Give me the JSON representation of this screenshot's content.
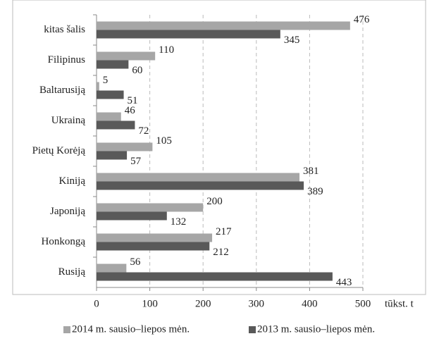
{
  "chart_data": {
    "type": "bar",
    "orientation": "horizontal",
    "categories": [
      "kitas šalis",
      "Filipinus",
      "Baltarusiją",
      "Ukrainą",
      "Pietų Korėją",
      "Kiniją",
      "Japoniją",
      "Honkongą",
      "Rusiją"
    ],
    "series": [
      {
        "name": "2014 m. sausio–liepos mėn.",
        "color": "#a6a6a6",
        "values": [
          476,
          110,
          5,
          46,
          105,
          381,
          200,
          217,
          56
        ]
      },
      {
        "name": "2013 m. sausio–liepos mėn.",
        "color": "#595959",
        "values": [
          345,
          60,
          51,
          72,
          57,
          389,
          132,
          212,
          443
        ]
      }
    ],
    "xlim": [
      0,
      500
    ],
    "xticks": [
      0,
      100,
      200,
      300,
      400,
      500
    ],
    "x_label": "tūkst. t",
    "grid": true,
    "legend": "bottom"
  }
}
